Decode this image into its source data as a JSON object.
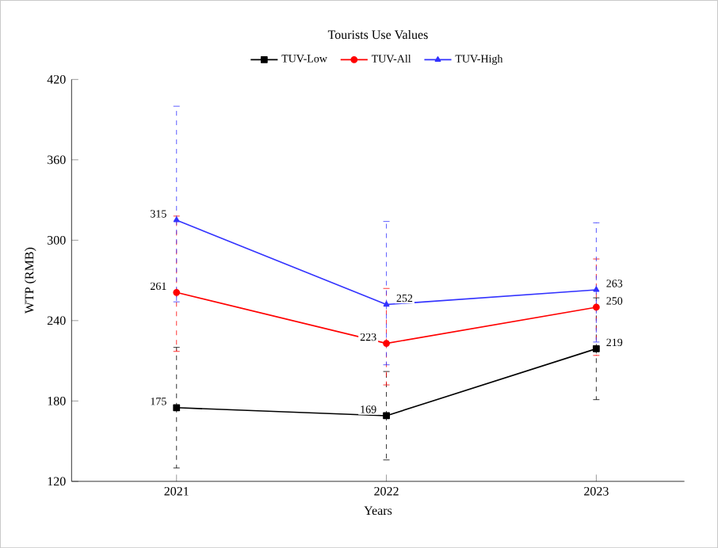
{
  "chart_data": {
    "type": "line",
    "title": "Tourists Use Values",
    "xlabel": "Years",
    "ylabel": "WTP (RMB)",
    "categories": [
      "2021",
      "2022",
      "2023"
    ],
    "series": [
      {
        "name": "TUV-Low",
        "color": "#000000",
        "marker": "square",
        "values": [
          175,
          169,
          219
        ],
        "errors": [
          [
            130,
            220
          ],
          [
            136,
            202
          ],
          [
            181,
            257
          ]
        ],
        "value_labels": [
          "175",
          "169",
          "219"
        ]
      },
      {
        "name": "TUV-All",
        "color": "#ff0000",
        "marker": "circle",
        "values": [
          261,
          223,
          250
        ],
        "errors": [
          [
            217,
            318
          ],
          [
            192,
            264
          ],
          [
            214,
            286
          ]
        ],
        "value_labels": [
          "261",
          "223",
          "250"
        ]
      },
      {
        "name": "TUV-High",
        "color": "#3333ff",
        "marker": "triangle",
        "values": [
          315,
          252,
          263
        ],
        "errors": [
          [
            254,
            400
          ],
          [
            207,
            314
          ],
          [
            224,
            313
          ]
        ],
        "value_labels": [
          "315",
          "252",
          "263"
        ]
      }
    ],
    "ylim": [
      120,
      420
    ],
    "yticks": [
      120,
      180,
      240,
      300,
      360,
      420
    ],
    "legend": "top",
    "grid": false,
    "line_style": "solid"
  }
}
